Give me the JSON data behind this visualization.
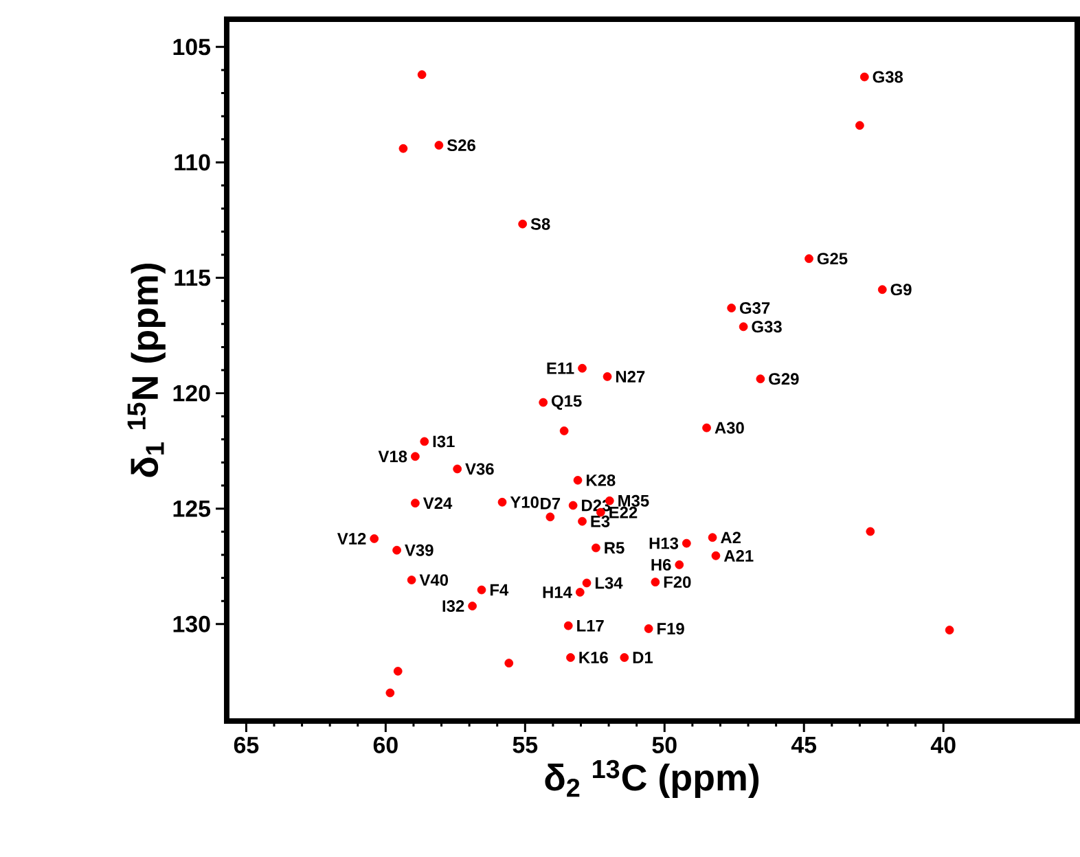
{
  "chart_data": {
    "type": "scatter",
    "xlabel": "δ$_{2}$ $^{13}$C (ppm)",
    "ylabel": "δ$_{1}$ $^{15}$N (ppm)",
    "x": [
      42.83,
      43.0,
      58.7,
      58.09,
      59.37,
      55.09,
      44.82,
      42.19,
      47.6,
      47.17,
      52.95,
      54.35,
      53.6,
      58.61,
      58.94,
      57.43,
      58.94,
      55.82,
      53.28,
      53.11,
      54.1,
      52.95,
      60.41,
      59.6,
      59.07,
      56.56,
      56.89,
      52.79,
      53.45,
      53.37,
      55.58,
      59.56,
      59.84,
      52.46,
      53.03,
      52.05,
      51.97,
      52.29,
      46.56,
      48.49,
      49.21,
      48.28,
      48.16,
      49.47,
      50.33,
      50.57,
      51.44,
      42.62,
      39.78
    ],
    "values": [
      106.3,
      108.4,
      106.2,
      109.26,
      109.4,
      112.67,
      114.17,
      115.51,
      116.31,
      117.12,
      118.92,
      120.4,
      121.63,
      122.09,
      122.74,
      123.28,
      124.76,
      124.72,
      124.86,
      123.77,
      125.36,
      125.55,
      126.3,
      126.8,
      128.09,
      128.52,
      129.22,
      128.22,
      130.07,
      131.45,
      131.69,
      132.04,
      132.98,
      126.7,
      128.62,
      119.28,
      124.66,
      125.16,
      119.38,
      121.5,
      126.5,
      126.25,
      127.04,
      127.43,
      128.18,
      130.2,
      131.45,
      125.99,
      130.26
    ],
    "color": "#ff0000",
    "marker": "circle",
    "xlim": [
      65.7,
      35.2
    ],
    "ylim": [
      134.2,
      103.8
    ],
    "xticks": [
      65,
      60,
      55,
      50,
      45,
      40
    ],
    "yticks": [
      105,
      110,
      115,
      120,
      125,
      130
    ],
    "annotations": [
      {
        "text": "G38",
        "x": 42.83,
        "y": 106.3
      },
      {
        "text": "S26",
        "x": 58.09,
        "y": 109.26
      },
      {
        "text": "S8",
        "x": 55.09,
        "y": 112.67
      },
      {
        "text": "G25",
        "x": 44.82,
        "y": 114.17
      },
      {
        "text": "G9",
        "x": 42.19,
        "y": 115.51
      },
      {
        "text": "G37",
        "x": 47.6,
        "y": 116.31
      },
      {
        "text": "G33",
        "x": 47.17,
        "y": 117.12
      },
      {
        "text": "E11",
        "x": 52.95,
        "y": 118.92
      },
      {
        "text": "N27",
        "x": 52.05,
        "y": 119.28
      },
      {
        "text": "Q15",
        "x": 54.35,
        "y": 120.4
      },
      {
        "text": "G29",
        "x": 46.56,
        "y": 119.38
      },
      {
        "text": "A30",
        "x": 48.49,
        "y": 121.5
      },
      {
        "text": "I31",
        "x": 58.61,
        "y": 122.09
      },
      {
        "text": "V18",
        "x": 58.94,
        "y": 122.74
      },
      {
        "text": "V36",
        "x": 57.43,
        "y": 123.28
      },
      {
        "text": "K28",
        "x": 53.11,
        "y": 123.77
      },
      {
        "text": "M35",
        "x": 51.97,
        "y": 124.66
      },
      {
        "text": "V24",
        "x": 58.94,
        "y": 124.76
      },
      {
        "text": "D23",
        "x": 53.28,
        "y": 124.86
      },
      {
        "text": "E22",
        "x": 52.29,
        "y": 125.16
      },
      {
        "text": "Y10",
        "x": 55.82,
        "y": 124.72
      },
      {
        "text": "D7",
        "x": 54.1,
        "y": 125.36
      },
      {
        "text": "E3",
        "x": 52.95,
        "y": 125.55
      },
      {
        "text": "V12",
        "x": 60.41,
        "y": 126.3
      },
      {
        "text": "H13",
        "x": 49.21,
        "y": 126.5
      },
      {
        "text": "A2",
        "x": 48.28,
        "y": 126.25
      },
      {
        "text": "V39",
        "x": 59.6,
        "y": 126.8
      },
      {
        "text": "R5",
        "x": 52.46,
        "y": 126.7
      },
      {
        "text": "H6",
        "x": 49.47,
        "y": 127.43
      },
      {
        "text": "A21",
        "x": 48.16,
        "y": 127.04
      },
      {
        "text": "V40",
        "x": 59.07,
        "y": 128.09
      },
      {
        "text": "L34",
        "x": 52.79,
        "y": 128.22
      },
      {
        "text": "F4",
        "x": 56.56,
        "y": 128.52
      },
      {
        "text": "F20",
        "x": 50.33,
        "y": 128.18
      },
      {
        "text": "H14",
        "x": 53.03,
        "y": 128.62
      },
      {
        "text": "I32",
        "x": 56.89,
        "y": 129.22
      },
      {
        "text": "F19",
        "x": 50.57,
        "y": 130.2
      },
      {
        "text": "L17",
        "x": 53.45,
        "y": 130.07
      },
      {
        "text": "K16",
        "x": 53.37,
        "y": 131.45
      },
      {
        "text": "D1",
        "x": 51.44,
        "y": 131.45
      }
    ]
  }
}
